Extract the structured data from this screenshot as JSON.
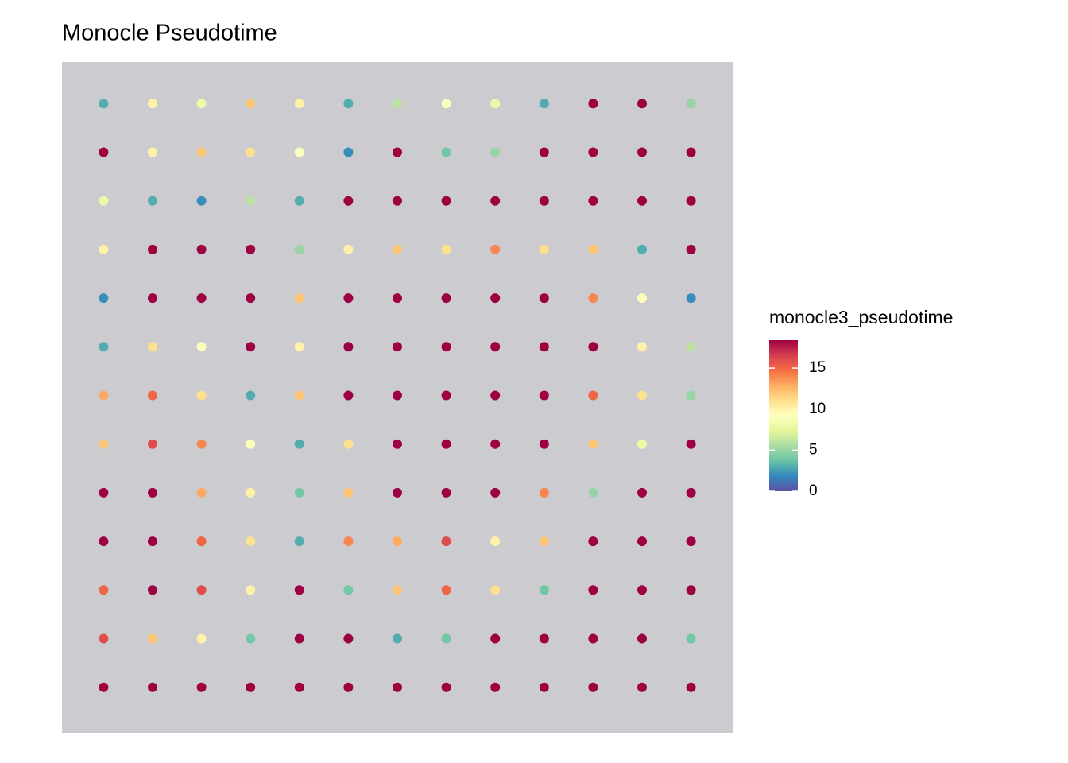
{
  "chart_data": {
    "type": "scatter",
    "title": "Monocle Pseudotime",
    "legend_title": "monocle3_pseudotime",
    "xlim": [
      0,
      100
    ],
    "ylim": [
      0,
      100
    ],
    "yreverse": true,
    "clim": [
      0,
      18.4
    ],
    "cticks": [
      0,
      5,
      10,
      15
    ],
    "colors": [
      "#5E4FA2",
      "#3288BD",
      "#66C2A5",
      "#ABDDA4",
      "#E6F598",
      "#FFFFBF",
      "#FEE08B",
      "#FDAE61",
      "#F46D43",
      "#D53E4F",
      "#9E0142"
    ],
    "x": [
      2,
      10,
      18,
      26,
      34,
      42,
      50,
      58,
      66,
      74,
      82,
      90,
      98,
      2,
      10,
      18,
      26,
      34,
      42,
      50,
      58,
      66,
      74,
      82,
      90,
      98,
      2,
      10,
      18,
      26,
      34,
      42,
      50,
      58,
      66,
      74,
      82,
      90,
      98,
      2,
      10,
      18,
      26,
      34,
      42,
      50,
      58,
      66,
      74,
      82,
      90,
      98,
      2,
      10,
      18,
      26,
      34,
      42,
      50,
      58,
      66,
      74,
      82,
      90,
      98,
      2,
      10,
      18,
      26,
      34,
      42,
      50,
      58,
      66,
      74,
      82,
      90,
      98,
      2,
      10,
      18,
      26,
      34,
      42,
      50,
      58,
      66,
      74,
      82,
      90,
      98,
      2,
      10,
      18,
      26,
      34,
      42,
      50,
      58,
      66,
      74,
      82,
      90,
      98,
      2,
      10,
      18,
      26,
      34,
      42,
      50,
      58,
      66,
      74,
      82,
      90,
      98,
      2,
      10,
      18,
      26,
      34,
      42,
      50,
      58,
      66,
      74,
      82,
      90,
      98,
      2,
      10,
      18,
      26,
      34,
      42,
      50,
      58,
      66,
      74,
      82,
      90,
      98,
      2,
      10,
      18,
      26,
      34,
      42,
      50,
      58,
      66,
      74,
      82,
      90,
      98,
      2,
      10,
      18,
      26,
      34,
      42,
      50,
      58,
      66,
      74,
      82,
      90,
      98
    ],
    "y": [
      2,
      2,
      2,
      2,
      2,
      2,
      2,
      2,
      2,
      2,
      2,
      2,
      2,
      10,
      10,
      10,
      10,
      10,
      10,
      10,
      10,
      10,
      10,
      10,
      10,
      10,
      18,
      18,
      18,
      18,
      18,
      18,
      18,
      18,
      18,
      18,
      18,
      18,
      18,
      26,
      26,
      26,
      26,
      26,
      26,
      26,
      26,
      26,
      26,
      26,
      26,
      26,
      34,
      34,
      34,
      34,
      34,
      34,
      34,
      34,
      34,
      34,
      34,
      34,
      34,
      42,
      42,
      42,
      42,
      42,
      42,
      42,
      42,
      42,
      42,
      42,
      42,
      42,
      50,
      50,
      50,
      50,
      50,
      50,
      50,
      50,
      50,
      50,
      50,
      50,
      50,
      58,
      58,
      58,
      58,
      58,
      58,
      58,
      58,
      58,
      58,
      58,
      58,
      58,
      66,
      66,
      66,
      66,
      66,
      66,
      66,
      66,
      66,
      66,
      66,
      66,
      66,
      74,
      74,
      74,
      74,
      74,
      74,
      74,
      74,
      74,
      74,
      74,
      74,
      74,
      82,
      82,
      82,
      82,
      82,
      82,
      82,
      82,
      82,
      82,
      82,
      82,
      82,
      90,
      90,
      90,
      90,
      90,
      90,
      90,
      90,
      90,
      90,
      90,
      90,
      90,
      98,
      98,
      98,
      98,
      98,
      98,
      98,
      98,
      98,
      98,
      98,
      98,
      98
    ],
    "values": [
      3,
      10,
      8,
      12,
      10,
      3,
      6,
      9,
      8,
      3,
      18.4,
      18.4,
      5,
      18.4,
      10,
      12,
      11,
      9,
      2,
      18.4,
      4,
      5,
      18.4,
      18.4,
      18.4,
      18.4,
      8,
      3,
      2,
      6,
      3,
      18.4,
      18.4,
      18.4,
      18.4,
      18.4,
      18.4,
      18.4,
      18.4,
      10,
      18.4,
      18.4,
      18.4,
      5,
      10,
      12,
      11,
      14,
      11,
      12,
      3,
      18.4,
      2,
      18.4,
      18.4,
      18.4,
      12,
      18.4,
      18.4,
      18.4,
      18.4,
      18.4,
      14,
      9,
      2,
      3,
      11,
      9,
      18.4,
      10,
      18.4,
      18.4,
      18.4,
      18.4,
      18.4,
      18.4,
      10,
      6,
      13,
      15,
      11,
      3,
      12,
      18.4,
      18.4,
      18.4,
      18.4,
      18.4,
      15,
      11,
      5,
      12,
      16,
      14,
      9,
      3,
      11,
      18.4,
      18.4,
      18.4,
      18.4,
      12,
      8,
      18.4,
      18.4,
      18.4,
      13,
      10,
      4,
      12,
      18.4,
      18.4,
      18.4,
      14,
      5,
      18.4,
      18.4,
      18.4,
      18.4,
      15,
      11,
      3,
      14,
      13,
      16,
      10,
      12,
      18.4,
      18.4,
      18.4,
      15,
      18.4,
      16,
      10,
      18.4,
      4,
      12,
      15,
      11,
      4,
      18.4,
      18.4,
      18.4,
      16,
      12,
      10,
      4,
      18.4,
      18.4,
      3,
      4,
      18.4,
      18.4,
      18.4,
      18.4,
      4,
      18.4,
      18.4,
      18.4,
      18.4,
      18.4,
      18.4,
      18.4,
      18.4,
      18.4,
      18.4,
      18.4,
      18.4,
      18.4
    ]
  }
}
